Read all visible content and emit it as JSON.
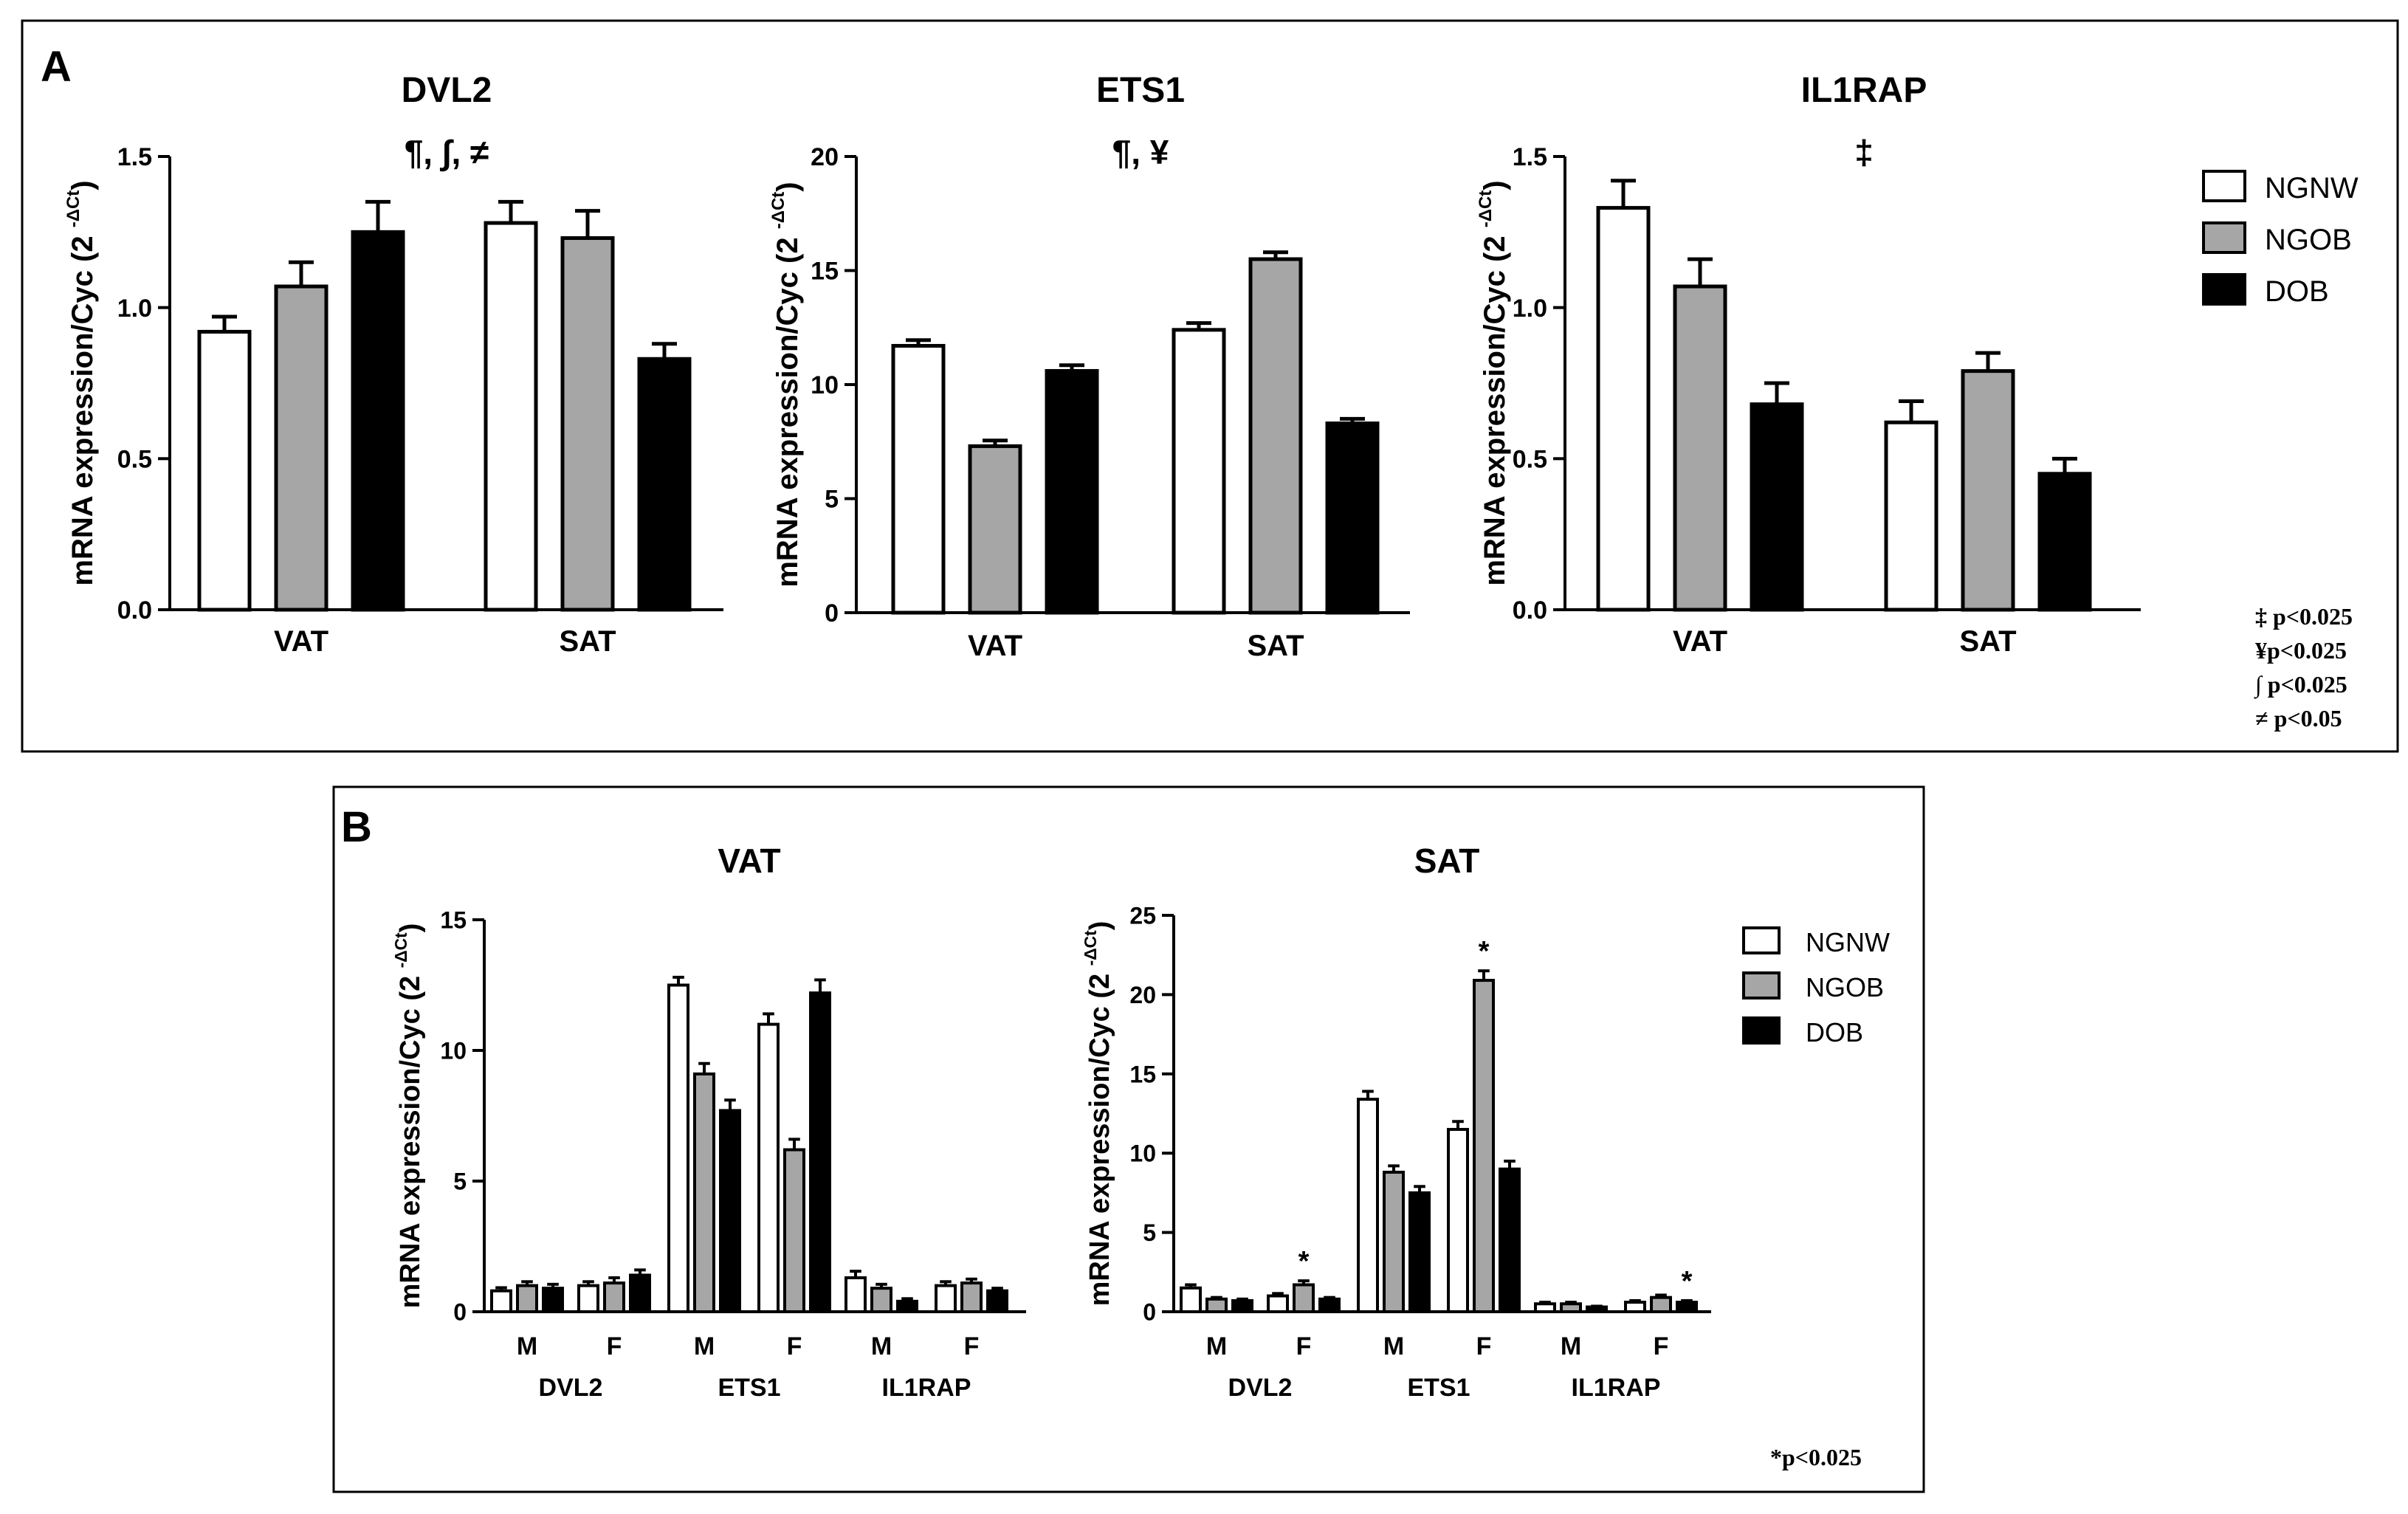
{
  "panels": {
    "A": {
      "label": "A",
      "footnotes": [
        "‡ p<0.025",
        "¥p<0.025",
        "∫ p<0.025",
        "≠ p<0.05"
      ]
    },
    "B": {
      "label": "B",
      "footnotes": [
        "*p<0.025"
      ]
    }
  },
  "legend": {
    "entries": [
      {
        "name": "NGNW",
        "color": "#ffffff"
      },
      {
        "name": "NGOB",
        "color": "#a6a6a6"
      },
      {
        "name": "DOB",
        "color": "#000000"
      }
    ]
  },
  "colors": {
    "NGNW": "#ffffff",
    "NGOB": "#a6a6a6",
    "DOB": "#000000",
    "stroke": "#000000"
  },
  "chart_data": [
    {
      "id": "A-DVL2",
      "type": "bar",
      "title": "DVL2",
      "annotation": "¶, ∫, ≠",
      "ylabel": "mRNA expression/Cyc (2",
      "ylabel_sup": "-ΔCt",
      "ylabel_close": ")",
      "categories": [
        "VAT",
        "SAT"
      ],
      "ylim": [
        0,
        1.5
      ],
      "yticks": [
        "0.0",
        "0.5",
        "1.0",
        "1.5"
      ],
      "series": [
        {
          "name": "NGNW",
          "values": [
            0.92,
            1.28
          ],
          "errors": [
            0.05,
            0.07
          ]
        },
        {
          "name": "NGOB",
          "values": [
            1.07,
            1.23
          ],
          "errors": [
            0.08,
            0.09
          ]
        },
        {
          "name": "DOB",
          "values": [
            1.25,
            0.83
          ],
          "errors": [
            0.1,
            0.05
          ]
        }
      ]
    },
    {
      "id": "A-ETS1",
      "type": "bar",
      "title": "ETS1",
      "annotation": "¶, ¥",
      "ylabel": "mRNA expression/Cyc (2",
      "ylabel_sup": "-ΔCt",
      "ylabel_close": ")",
      "categories": [
        "VAT",
        "SAT"
      ],
      "ylim": [
        0,
        20
      ],
      "yticks": [
        "0",
        "5",
        "10",
        "15",
        "20"
      ],
      "series": [
        {
          "name": "NGNW",
          "values": [
            11.7,
            12.4
          ],
          "errors": [
            0.25,
            0.3
          ]
        },
        {
          "name": "NGOB",
          "values": [
            7.3,
            15.5
          ],
          "errors": [
            0.25,
            0.3
          ]
        },
        {
          "name": "DOB",
          "values": [
            10.6,
            8.3
          ],
          "errors": [
            0.25,
            0.2
          ]
        }
      ]
    },
    {
      "id": "A-IL1RAP",
      "type": "bar",
      "title": "IL1RAP",
      "annotation": "‡",
      "ylabel": "mRNA expression/Cyc (2",
      "ylabel_sup": "-ΔCt",
      "ylabel_close": ")",
      "categories": [
        "VAT",
        "SAT"
      ],
      "ylim": [
        0,
        1.5
      ],
      "yticks": [
        "0.0",
        "0.5",
        "1.0",
        "1.5"
      ],
      "series": [
        {
          "name": "NGNW",
          "values": [
            1.33,
            0.62
          ],
          "errors": [
            0.09,
            0.07
          ]
        },
        {
          "name": "NGOB",
          "values": [
            1.07,
            0.79
          ],
          "errors": [
            0.09,
            0.06
          ]
        },
        {
          "name": "DOB",
          "values": [
            0.68,
            0.45
          ],
          "errors": [
            0.07,
            0.05
          ]
        }
      ]
    },
    {
      "id": "B-VAT",
      "type": "bar",
      "title": "VAT",
      "ylabel": "mRNA expression/Cyc (2",
      "ylabel_sup": "-ΔCt",
      "ylabel_close": ")",
      "categories": [
        "M",
        "F",
        "M",
        "F",
        "M",
        "F"
      ],
      "genes": [
        "DVL2",
        "ETS1",
        "IL1RAP"
      ],
      "ylim": [
        0,
        15
      ],
      "yticks": [
        "0",
        "5",
        "10",
        "15"
      ],
      "series": [
        {
          "name": "NGNW",
          "values": [
            0.8,
            1.0,
            12.5,
            11.0,
            1.3,
            1.0
          ],
          "errors": [
            0.12,
            0.15,
            0.3,
            0.4,
            0.25,
            0.15
          ]
        },
        {
          "name": "NGOB",
          "values": [
            1.0,
            1.1,
            9.1,
            6.2,
            0.9,
            1.1
          ],
          "errors": [
            0.15,
            0.2,
            0.4,
            0.4,
            0.15,
            0.15
          ]
        },
        {
          "name": "DOB",
          "values": [
            0.9,
            1.4,
            7.7,
            12.2,
            0.4,
            0.8
          ],
          "errors": [
            0.15,
            0.2,
            0.4,
            0.5,
            0.1,
            0.1
          ]
        }
      ],
      "significance": []
    },
    {
      "id": "B-SAT",
      "type": "bar",
      "title": "SAT",
      "ylabel": "mRNA expression/Cyc (2",
      "ylabel_sup": "-ΔCt",
      "ylabel_close": ")",
      "categories": [
        "M",
        "F",
        "M",
        "F",
        "M",
        "F"
      ],
      "genes": [
        "DVL2",
        "ETS1",
        "IL1RAP"
      ],
      "ylim": [
        0,
        25
      ],
      "yticks": [
        "0",
        "5",
        "10",
        "15",
        "20",
        "25"
      ],
      "series": [
        {
          "name": "NGNW",
          "values": [
            1.5,
            1.0,
            13.4,
            11.5,
            0.5,
            0.6
          ],
          "errors": [
            0.2,
            0.15,
            0.5,
            0.5,
            0.1,
            0.1
          ]
        },
        {
          "name": "NGOB",
          "values": [
            0.8,
            1.7,
            8.8,
            20.9,
            0.5,
            0.9
          ],
          "errors": [
            0.1,
            0.25,
            0.4,
            0.6,
            0.1,
            0.15
          ]
        },
        {
          "name": "DOB",
          "values": [
            0.7,
            0.8,
            7.5,
            9.0,
            0.3,
            0.6
          ],
          "errors": [
            0.1,
            0.1,
            0.4,
            0.5,
            0.05,
            0.1
          ]
        }
      ],
      "significance": [
        {
          "group": 1,
          "series": 1,
          "label": "*"
        },
        {
          "group": 3,
          "series": 1,
          "label": "*"
        },
        {
          "group": 5,
          "series": 2,
          "label": "*"
        }
      ]
    }
  ]
}
